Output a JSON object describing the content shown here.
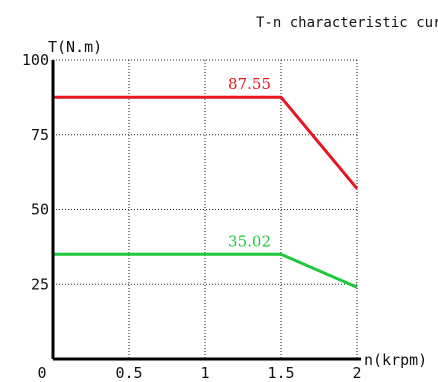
{
  "chart_data": {
    "type": "line",
    "title": "T-n characteristic curve:",
    "xlabel": "n(krpm)",
    "ylabel": "T(N.m)",
    "xlim": [
      0,
      2
    ],
    "ylim": [
      0,
      100
    ],
    "x_ticks": [
      "0",
      "0.5",
      "1",
      "1.5",
      "2"
    ],
    "y_ticks": [
      "100",
      "75",
      "50",
      "25"
    ],
    "grid": true,
    "series": [
      {
        "color": "#e8141e",
        "label": "87.55",
        "x": [
          0,
          1.5,
          2
        ],
        "y": [
          87.55,
          87.55,
          57
        ]
      },
      {
        "color": "#1ec83c",
        "label": "35.02",
        "x": [
          0,
          1.5,
          2
        ],
        "y": [
          35.02,
          35.02,
          24
        ]
      }
    ]
  }
}
